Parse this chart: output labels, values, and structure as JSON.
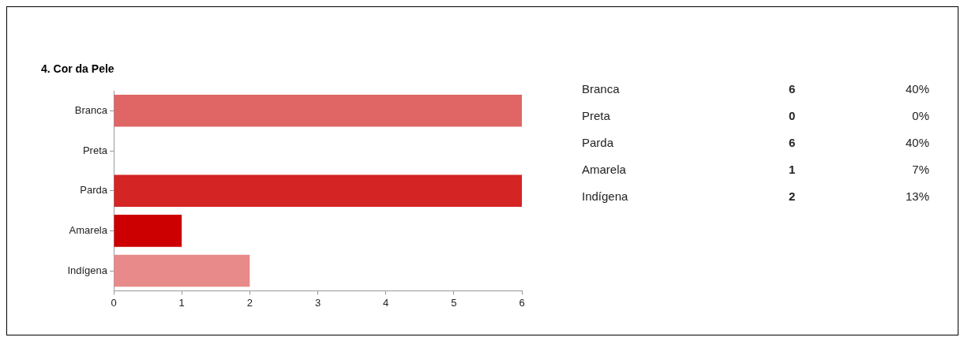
{
  "chart_data": {
    "type": "bar",
    "orientation": "horizontal",
    "title": "4. Cor da Pele",
    "categories": [
      "Branca",
      "Preta",
      "Parda",
      "Amarela",
      "Indígena"
    ],
    "values": [
      6,
      0,
      6,
      1,
      2
    ],
    "colors": [
      "#e06666",
      "#cc3333",
      "#d42424",
      "#cc0000",
      "#e88a8a"
    ],
    "xlim": [
      0,
      6
    ],
    "xticks": [
      0,
      1,
      2,
      3,
      4,
      5,
      6
    ],
    "grid": false,
    "legend": false,
    "annotations": [
      "6",
      "40%",
      "0",
      "0%",
      "6",
      "40%",
      "1",
      "7%",
      "2",
      "13%"
    ]
  }
}
